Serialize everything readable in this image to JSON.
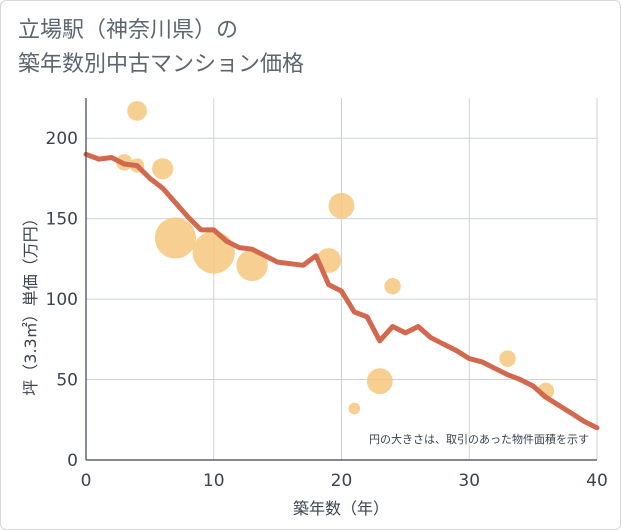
{
  "chart_data": {
    "type": "scatter",
    "title_lines": [
      "立場駅（神奈川県）の",
      "築年数別中古マンション価格"
    ],
    "xlabel": "築年数（年）",
    "ylabel": "坪（3.3㎡）単価（万円）",
    "xlim": [
      0,
      40
    ],
    "ylim": [
      0,
      225
    ],
    "x_ticks": [
      0,
      10,
      20,
      30,
      40
    ],
    "y_ticks": [
      0,
      50,
      100,
      150,
      200
    ],
    "grid": true,
    "note": "円の大きさは、取引のあった物件面積を示す",
    "bubble_color": "#f5c77e",
    "line_color": "#d2694f",
    "bubbles": [
      {
        "x": 3,
        "y": 185,
        "size": 3
      },
      {
        "x": 4,
        "y": 217,
        "size": 5
      },
      {
        "x": 4,
        "y": 183,
        "size": 2
      },
      {
        "x": 6,
        "y": 181,
        "size": 6
      },
      {
        "x": 7,
        "y": 138,
        "size": 30
      },
      {
        "x": 10,
        "y": 129,
        "size": 32
      },
      {
        "x": 13,
        "y": 121,
        "size": 16
      },
      {
        "x": 19,
        "y": 124,
        "size": 9
      },
      {
        "x": 20,
        "y": 158,
        "size": 10
      },
      {
        "x": 21,
        "y": 32,
        "size": 1
      },
      {
        "x": 23,
        "y": 49,
        "size": 10
      },
      {
        "x": 24,
        "y": 108,
        "size": 3
      },
      {
        "x": 33,
        "y": 63,
        "size": 3
      },
      {
        "x": 36,
        "y": 43,
        "size": 3
      }
    ],
    "series": [
      {
        "x": [
          0,
          1,
          2,
          3,
          4,
          5,
          6,
          7,
          8,
          9,
          10,
          11,
          12,
          13,
          14,
          15,
          16,
          17,
          18,
          19,
          20,
          21,
          22,
          23,
          24,
          25,
          26,
          27,
          28,
          29,
          30,
          31,
          32,
          33,
          34,
          35,
          36,
          37,
          38,
          39,
          40
        ],
        "y": [
          190,
          187,
          188,
          184,
          183,
          175,
          169,
          160,
          151,
          143,
          143,
          136,
          132,
          131,
          127,
          123,
          122,
          121,
          127,
          109,
          105,
          92,
          89,
          74,
          83,
          79,
          83,
          76,
          72,
          68,
          63,
          61,
          57,
          53,
          50,
          46,
          39,
          34,
          29,
          24,
          20
        ]
      }
    ]
  }
}
